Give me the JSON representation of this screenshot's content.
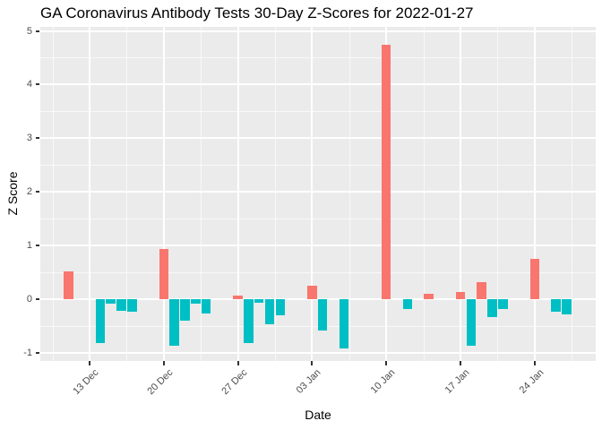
{
  "title": "GA Coronavirus Antibody Tests 30-Day Z-Scores for 2022-01-27",
  "chart_data": {
    "type": "bar",
    "title": "GA Coronavirus Antibody Tests 30-Day Z-Scores for 2022-01-27",
    "xlabel": "Date",
    "ylabel": "Z Score",
    "ylim": [
      -1.15,
      5.08
    ],
    "y_ticks": [
      -1,
      0,
      1,
      2,
      3,
      4,
      5
    ],
    "x_ticks": [
      {
        "label": "13 Dec",
        "day": 2
      },
      {
        "label": "20 Dec",
        "day": 9
      },
      {
        "label": "27 Dec",
        "day": 16
      },
      {
        "label": "03 Jan",
        "day": 23
      },
      {
        "label": "10 Jan",
        "day": 30
      },
      {
        "label": "17 Jan",
        "day": 37
      },
      {
        "label": "24 Jan",
        "day": 44
      }
    ],
    "legend": "none",
    "grid": {
      "major": true,
      "minor": true
    },
    "colors": {
      "positive_bar": "#F8766D",
      "negative_bar": "#00BFC4",
      "panel_background": "#EBEBEB",
      "gridline": "#FFFFFF",
      "tick_text": "#4D4D4D",
      "axis_text": "#000000"
    },
    "points": [
      {
        "date": "2021-12-11",
        "day": 0,
        "value": 0.52
      },
      {
        "date": "2021-12-14",
        "day": 3,
        "value": -0.82
      },
      {
        "date": "2021-12-15",
        "day": 4,
        "value": -0.08
      },
      {
        "date": "2021-12-16",
        "day": 5,
        "value": -0.21
      },
      {
        "date": "2021-12-17",
        "day": 6,
        "value": -0.24
      },
      {
        "date": "2021-12-20",
        "day": 9,
        "value": 0.93
      },
      {
        "date": "2021-12-21",
        "day": 10,
        "value": -0.87
      },
      {
        "date": "2021-12-22",
        "day": 11,
        "value": -0.4
      },
      {
        "date": "2021-12-23",
        "day": 12,
        "value": -0.08
      },
      {
        "date": "2021-12-24",
        "day": 13,
        "value": -0.27
      },
      {
        "date": "2021-12-27",
        "day": 16,
        "value": 0.06
      },
      {
        "date": "2021-12-28",
        "day": 17,
        "value": -0.81
      },
      {
        "date": "2021-12-29",
        "day": 18,
        "value": -0.07
      },
      {
        "date": "2021-12-30",
        "day": 19,
        "value": -0.47
      },
      {
        "date": "2021-12-31",
        "day": 20,
        "value": -0.3
      },
      {
        "date": "2022-01-03",
        "day": 23,
        "value": 0.25
      },
      {
        "date": "2022-01-04",
        "day": 24,
        "value": -0.58
      },
      {
        "date": "2022-01-06",
        "day": 26,
        "value": -0.91
      },
      {
        "date": "2022-01-10",
        "day": 30,
        "value": 4.75
      },
      {
        "date": "2022-01-12",
        "day": 32,
        "value": -0.18
      },
      {
        "date": "2022-01-14",
        "day": 34,
        "value": 0.1
      },
      {
        "date": "2022-01-17",
        "day": 37,
        "value": 0.13
      },
      {
        "date": "2022-01-18",
        "day": 38,
        "value": -0.86
      },
      {
        "date": "2022-01-19",
        "day": 39,
        "value": 0.32
      },
      {
        "date": "2022-01-20",
        "day": 40,
        "value": -0.33
      },
      {
        "date": "2022-01-21",
        "day": 41,
        "value": -0.18
      },
      {
        "date": "2022-01-24",
        "day": 44,
        "value": 0.75
      },
      {
        "date": "2022-01-26",
        "day": 46,
        "value": -0.23
      },
      {
        "date": "2022-01-27",
        "day": 47,
        "value": -0.28
      }
    ]
  }
}
